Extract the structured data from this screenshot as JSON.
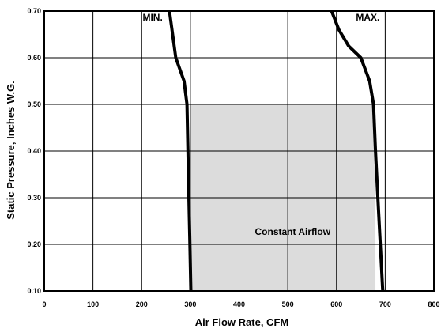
{
  "chart_data": {
    "type": "line",
    "title": "",
    "xlabel": "Air Flow Rate, CFM",
    "ylabel": "Static Pressure, Inches W.G.",
    "xlim": [
      0,
      800
    ],
    "ylim": [
      0.1,
      0.7
    ],
    "x_ticks": [
      "0",
      "100",
      "200",
      "300",
      "400",
      "500",
      "600",
      "700",
      "800"
    ],
    "y_ticks": [
      "0.10",
      "0.20",
      "0.30",
      "0.40",
      "0.50",
      "0.60",
      "0.70"
    ],
    "grid": true,
    "series": [
      {
        "name": "MIN.",
        "color": "#000000",
        "points": [
          [
            257,
            0.7
          ],
          [
            270,
            0.6
          ],
          [
            287,
            0.55
          ],
          [
            293,
            0.5
          ],
          [
            295,
            0.4
          ],
          [
            297,
            0.3
          ],
          [
            299,
            0.2
          ],
          [
            301,
            0.1
          ]
        ]
      },
      {
        "name": "MAX.",
        "color": "#000000",
        "points": [
          [
            590,
            0.7
          ],
          [
            605,
            0.66
          ],
          [
            625,
            0.625
          ],
          [
            650,
            0.6
          ],
          [
            668,
            0.55
          ],
          [
            676,
            0.5
          ],
          [
            680,
            0.4
          ],
          [
            685,
            0.3
          ],
          [
            690,
            0.2
          ],
          [
            695,
            0.1
          ]
        ]
      }
    ],
    "region": {
      "label": "Constant Airflow",
      "x_range": [
        300,
        680
      ],
      "y_range": [
        0.1,
        0.5
      ],
      "color": "#dcdcdc"
    },
    "annotations": [
      {
        "text": "MIN.",
        "x": 202,
        "y": 0.68
      },
      {
        "text": "MAX.",
        "x": 640,
        "y": 0.68
      },
      {
        "text": "Constant Airflow",
        "x": 510,
        "y": 0.22
      }
    ]
  }
}
